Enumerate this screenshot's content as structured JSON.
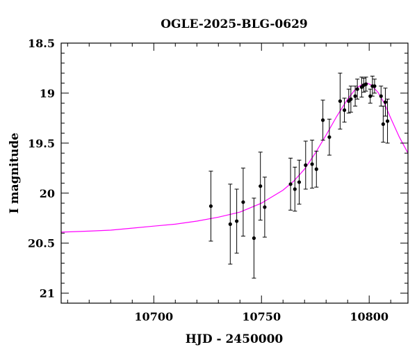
{
  "chart_data": {
    "type": "scatter",
    "title": "OGLE-2025-BLG-0629",
    "xlabel": "HJD - 2450000",
    "ylabel": "I magnitude",
    "xlim": [
      10657,
      10818
    ],
    "ylim": [
      21.1,
      18.5
    ],
    "y_inverted": true,
    "x_ticks": [
      10700,
      10750,
      10800
    ],
    "y_ticks": [
      18.5,
      19,
      19.5,
      20,
      20.5,
      21
    ],
    "y_tick_labels": [
      "18.5",
      "19",
      "19.5",
      "20",
      "20.5",
      "21"
    ],
    "x_tick_labels": [
      "10700",
      "10750",
      "10800"
    ],
    "grid": false,
    "colors": {
      "model": "#ff00ff",
      "points": "#000000"
    },
    "model_curve": {
      "x": [
        10657,
        10670,
        10680,
        10690,
        10700,
        10710,
        10720,
        10730,
        10740,
        10750,
        10760,
        10765,
        10770,
        10775,
        10780,
        10785,
        10790,
        10794,
        10797,
        10799,
        10801,
        10804,
        10807,
        10810,
        10814,
        10818
      ],
      "y": [
        20.39,
        20.38,
        20.37,
        20.35,
        20.33,
        20.31,
        20.28,
        20.24,
        20.19,
        20.1,
        19.97,
        19.88,
        19.76,
        19.6,
        19.42,
        19.23,
        19.06,
        18.95,
        18.91,
        18.9,
        18.92,
        18.99,
        19.1,
        19.25,
        19.44,
        19.6
      ]
    },
    "series": [
      {
        "x": [
          10726.5,
          10735.5,
          10738.5,
          10741.5,
          10746.5,
          10749.5,
          10751.5,
          10763.5,
          10765.5,
          10767.5,
          10770.5,
          10773.5,
          10775.5,
          10778.5,
          10781.5,
          10786.5,
          10788.5,
          10790.5,
          10791.5,
          10793.5,
          10794.5,
          10796.5,
          10797.5,
          10798.5,
          10800.5,
          10801.5,
          10802.5,
          10805.5,
          10806.5,
          10807.5,
          10808.5
        ],
        "y": [
          20.13,
          20.31,
          20.28,
          20.09,
          20.45,
          19.93,
          20.14,
          19.91,
          19.96,
          19.89,
          19.72,
          19.71,
          19.76,
          19.27,
          19.44,
          19.08,
          19.17,
          19.08,
          19.06,
          19.03,
          18.96,
          18.94,
          18.92,
          18.91,
          19.03,
          18.93,
          18.93,
          19.03,
          19.31,
          19.09,
          19.28
        ],
        "err": [
          0.35,
          0.4,
          0.32,
          0.34,
          0.4,
          0.34,
          0.3,
          0.26,
          0.22,
          0.22,
          0.24,
          0.24,
          0.18,
          0.2,
          0.18,
          0.28,
          0.12,
          0.12,
          0.13,
          0.1,
          0.1,
          0.1,
          0.07,
          0.07,
          0.07,
          0.1,
          0.07,
          0.1,
          0.18,
          0.14,
          0.22
        ]
      }
    ]
  }
}
